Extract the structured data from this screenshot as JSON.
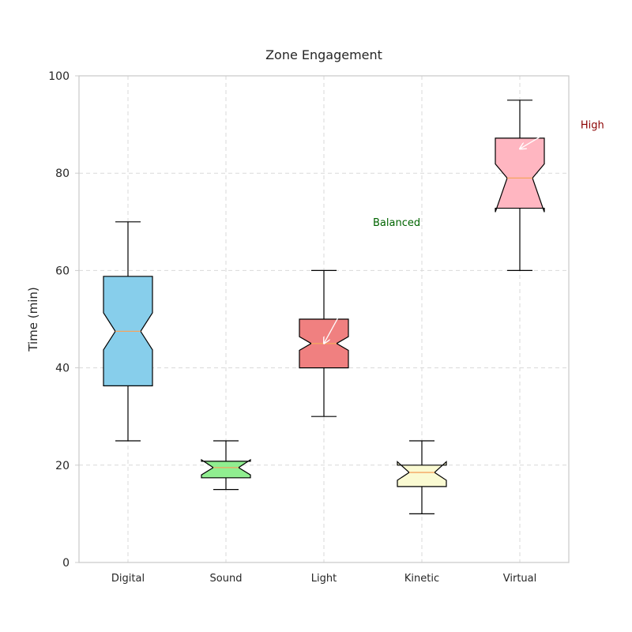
{
  "chart_data": {
    "type": "box",
    "title": "Zone Engagement",
    "xlabel": "",
    "ylabel": "Time (min)",
    "ylim": [
      0,
      100
    ],
    "yticks": [
      0,
      20,
      40,
      60,
      80,
      100
    ],
    "grid": true,
    "notched": true,
    "categories": [
      "Digital",
      "Sound",
      "Light",
      "Kinetic",
      "Virtual"
    ],
    "boxes": [
      {
        "category": "Digital",
        "whisker_low": 25,
        "q1": 36.3,
        "median": 47.5,
        "q3": 58.8,
        "whisker_high": 70,
        "notch_low": 43.7,
        "notch_high": 51.3,
        "color": "#87ceeb"
      },
      {
        "category": "Sound",
        "whisker_low": 15,
        "q1": 17.4,
        "median": 19.5,
        "q3": 20.8,
        "whisker_high": 25,
        "notch_low": 18.0,
        "notch_high": 21.1,
        "color": "#90ee90"
      },
      {
        "category": "Light",
        "whisker_low": 30,
        "q1": 40,
        "median": 45,
        "q3": 50,
        "whisker_high": 60,
        "notch_low": 43.6,
        "notch_high": 46.4,
        "color": "#f08080"
      },
      {
        "category": "Kinetic",
        "whisker_low": 10,
        "q1": 15.6,
        "median": 18.5,
        "q3": 20,
        "whisker_high": 25,
        "notch_low": 16.9,
        "notch_high": 20.7,
        "color": "#fafad2"
      },
      {
        "category": "Virtual",
        "whisker_low": 60,
        "q1": 72.8,
        "median": 79,
        "q3": 87.2,
        "whisker_high": 95,
        "notch_low": 72.0,
        "notch_high": 81.9,
        "color": "#ffb6c1"
      }
    ],
    "median_color": "#f4a460",
    "annotations": [
      {
        "text": "High",
        "x": 5.62,
        "y": 90,
        "color": "#8b0000",
        "arrow_to": [
          5.0,
          85
        ]
      },
      {
        "text": "Balanced",
        "x": 3.5,
        "y": 70,
        "color": "#006400",
        "arrow_from": [
          3.15,
          50.5
        ],
        "arrow_to": [
          3.0,
          45
        ]
      }
    ]
  }
}
